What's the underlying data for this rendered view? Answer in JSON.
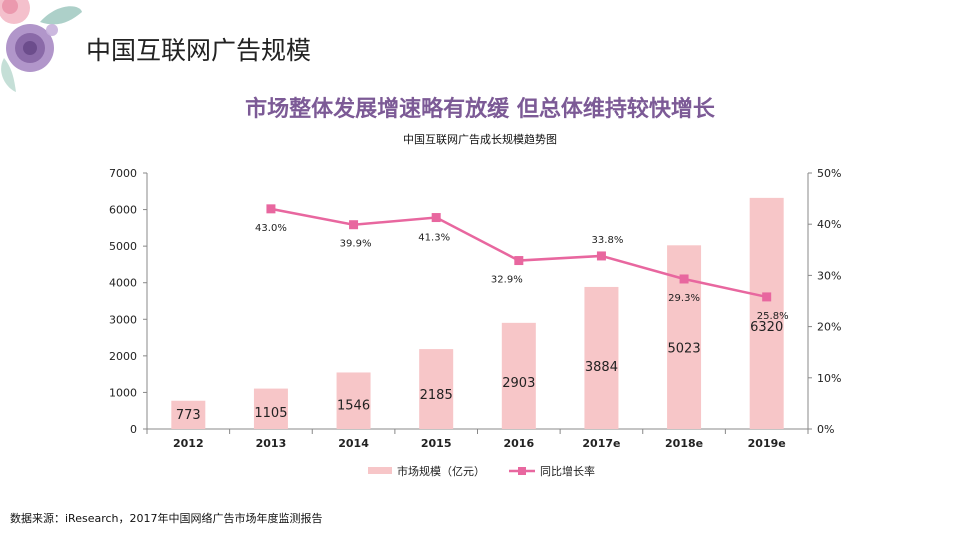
{
  "page": {
    "title": "中国互联网广告规模",
    "headline": "市场整体发展增速略有放缓 但总体维持较快增长",
    "source": "数据来源：iResearch，2017年中国网络广告市场年度监测报告"
  },
  "colors": {
    "bar": "#f7c6c8",
    "line": "#e8679f",
    "headline": "#7c5a96",
    "axis": "#888888"
  },
  "chart_data": {
    "type": "bar",
    "title": "中国互联网广告成长规模趋势图",
    "categories": [
      "2012",
      "2013",
      "2014",
      "2015",
      "2016",
      "2017e",
      "2018e",
      "2019e"
    ],
    "series": [
      {
        "name": "市场规模（亿元）",
        "type": "bar",
        "axis": "left",
        "values": [
          773,
          1105,
          1546,
          2185,
          2903,
          3884,
          5023,
          6320
        ],
        "labels": [
          "773",
          "1105",
          "1546",
          "2185",
          "2903",
          "3884",
          "5023",
          "6320"
        ]
      },
      {
        "name": "同比增长率",
        "type": "line",
        "axis": "right",
        "values": [
          null,
          43.0,
          39.9,
          41.3,
          32.9,
          33.8,
          29.3,
          25.8
        ],
        "labels": [
          "",
          "43.0%",
          "39.9%",
          "41.3%",
          "32.9%",
          "33.8%",
          "29.3%",
          "25.8%"
        ]
      }
    ],
    "y_left": {
      "ylim": [
        0,
        7000
      ],
      "ticks": [
        "0",
        "1000",
        "2000",
        "3000",
        "4000",
        "5000",
        "6000",
        "7000"
      ]
    },
    "y_right": {
      "ylim": [
        0,
        50
      ],
      "ticks": [
        "0%",
        "10%",
        "20%",
        "30%",
        "40%",
        "50%"
      ]
    },
    "legend_position": "bottom",
    "grid": false
  }
}
